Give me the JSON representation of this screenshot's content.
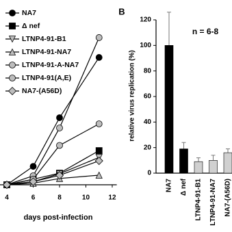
{
  "chart_data": [
    {
      "type": "line",
      "xlabel": "days post-infection",
      "x": [
        4,
        6,
        8,
        11
      ],
      "xlim": [
        3.5,
        12.5
      ],
      "xticks": [
        4,
        6,
        8,
        10,
        12
      ],
      "ylim": [
        0,
        100
      ],
      "series": [
        {
          "name": "NA7",
          "color": "#000000",
          "marker": "circle",
          "values": [
            0,
            11.7,
            42.6,
            80.9
          ]
        },
        {
          "name": "Δ nef",
          "color": "#000000",
          "marker": "square",
          "values": [
            0,
            3.5,
            7.4,
            21.7
          ]
        },
        {
          "name": "LTNP4-91-B1",
          "color": "#bdbdbd",
          "marker": "triangle-down",
          "values": [
            0,
            2,
            7,
            17.4
          ]
        },
        {
          "name": "LTNP4-91-NA7",
          "color": "#bdbdbd",
          "marker": "triangle-up",
          "values": [
            0,
            1,
            4,
            6.1
          ]
        },
        {
          "name": "LTNP4-91-A-NA7",
          "color": "#bdbdbd",
          "marker": "circle",
          "values": [
            0,
            5.7,
            36.1,
            93.5
          ]
        },
        {
          "name": "LTNP4-91(A,E)",
          "color": "#bdbdbd",
          "marker": "circle",
          "values": [
            0,
            3.5,
            25,
            38.7
          ]
        },
        {
          "name": "NA7-(A56D)",
          "color": "#bdbdbd",
          "marker": "diamond",
          "values": [
            0,
            2,
            6,
            15.2
          ]
        }
      ]
    },
    {
      "type": "bar",
      "panel_label": "B",
      "annotation": "n = 6-8",
      "ylabel": "relative virus replication (%)",
      "categories": [
        "NA7",
        "Δ nef",
        "LTNP4-91-B1",
        "LTNP4-91-NA7",
        "NA7-(A56D)"
      ],
      "values": [
        100,
        19,
        9,
        10,
        16
      ],
      "errors": [
        26,
        5,
        3,
        4,
        3
      ],
      "colors": [
        "#000000",
        "#000000",
        "#d0d0d0",
        "#d0d0d0",
        "#d0d0d0"
      ],
      "ylim": [
        0,
        120
      ],
      "yticks": [
        0,
        20,
        40,
        60,
        80,
        100,
        120
      ]
    }
  ]
}
